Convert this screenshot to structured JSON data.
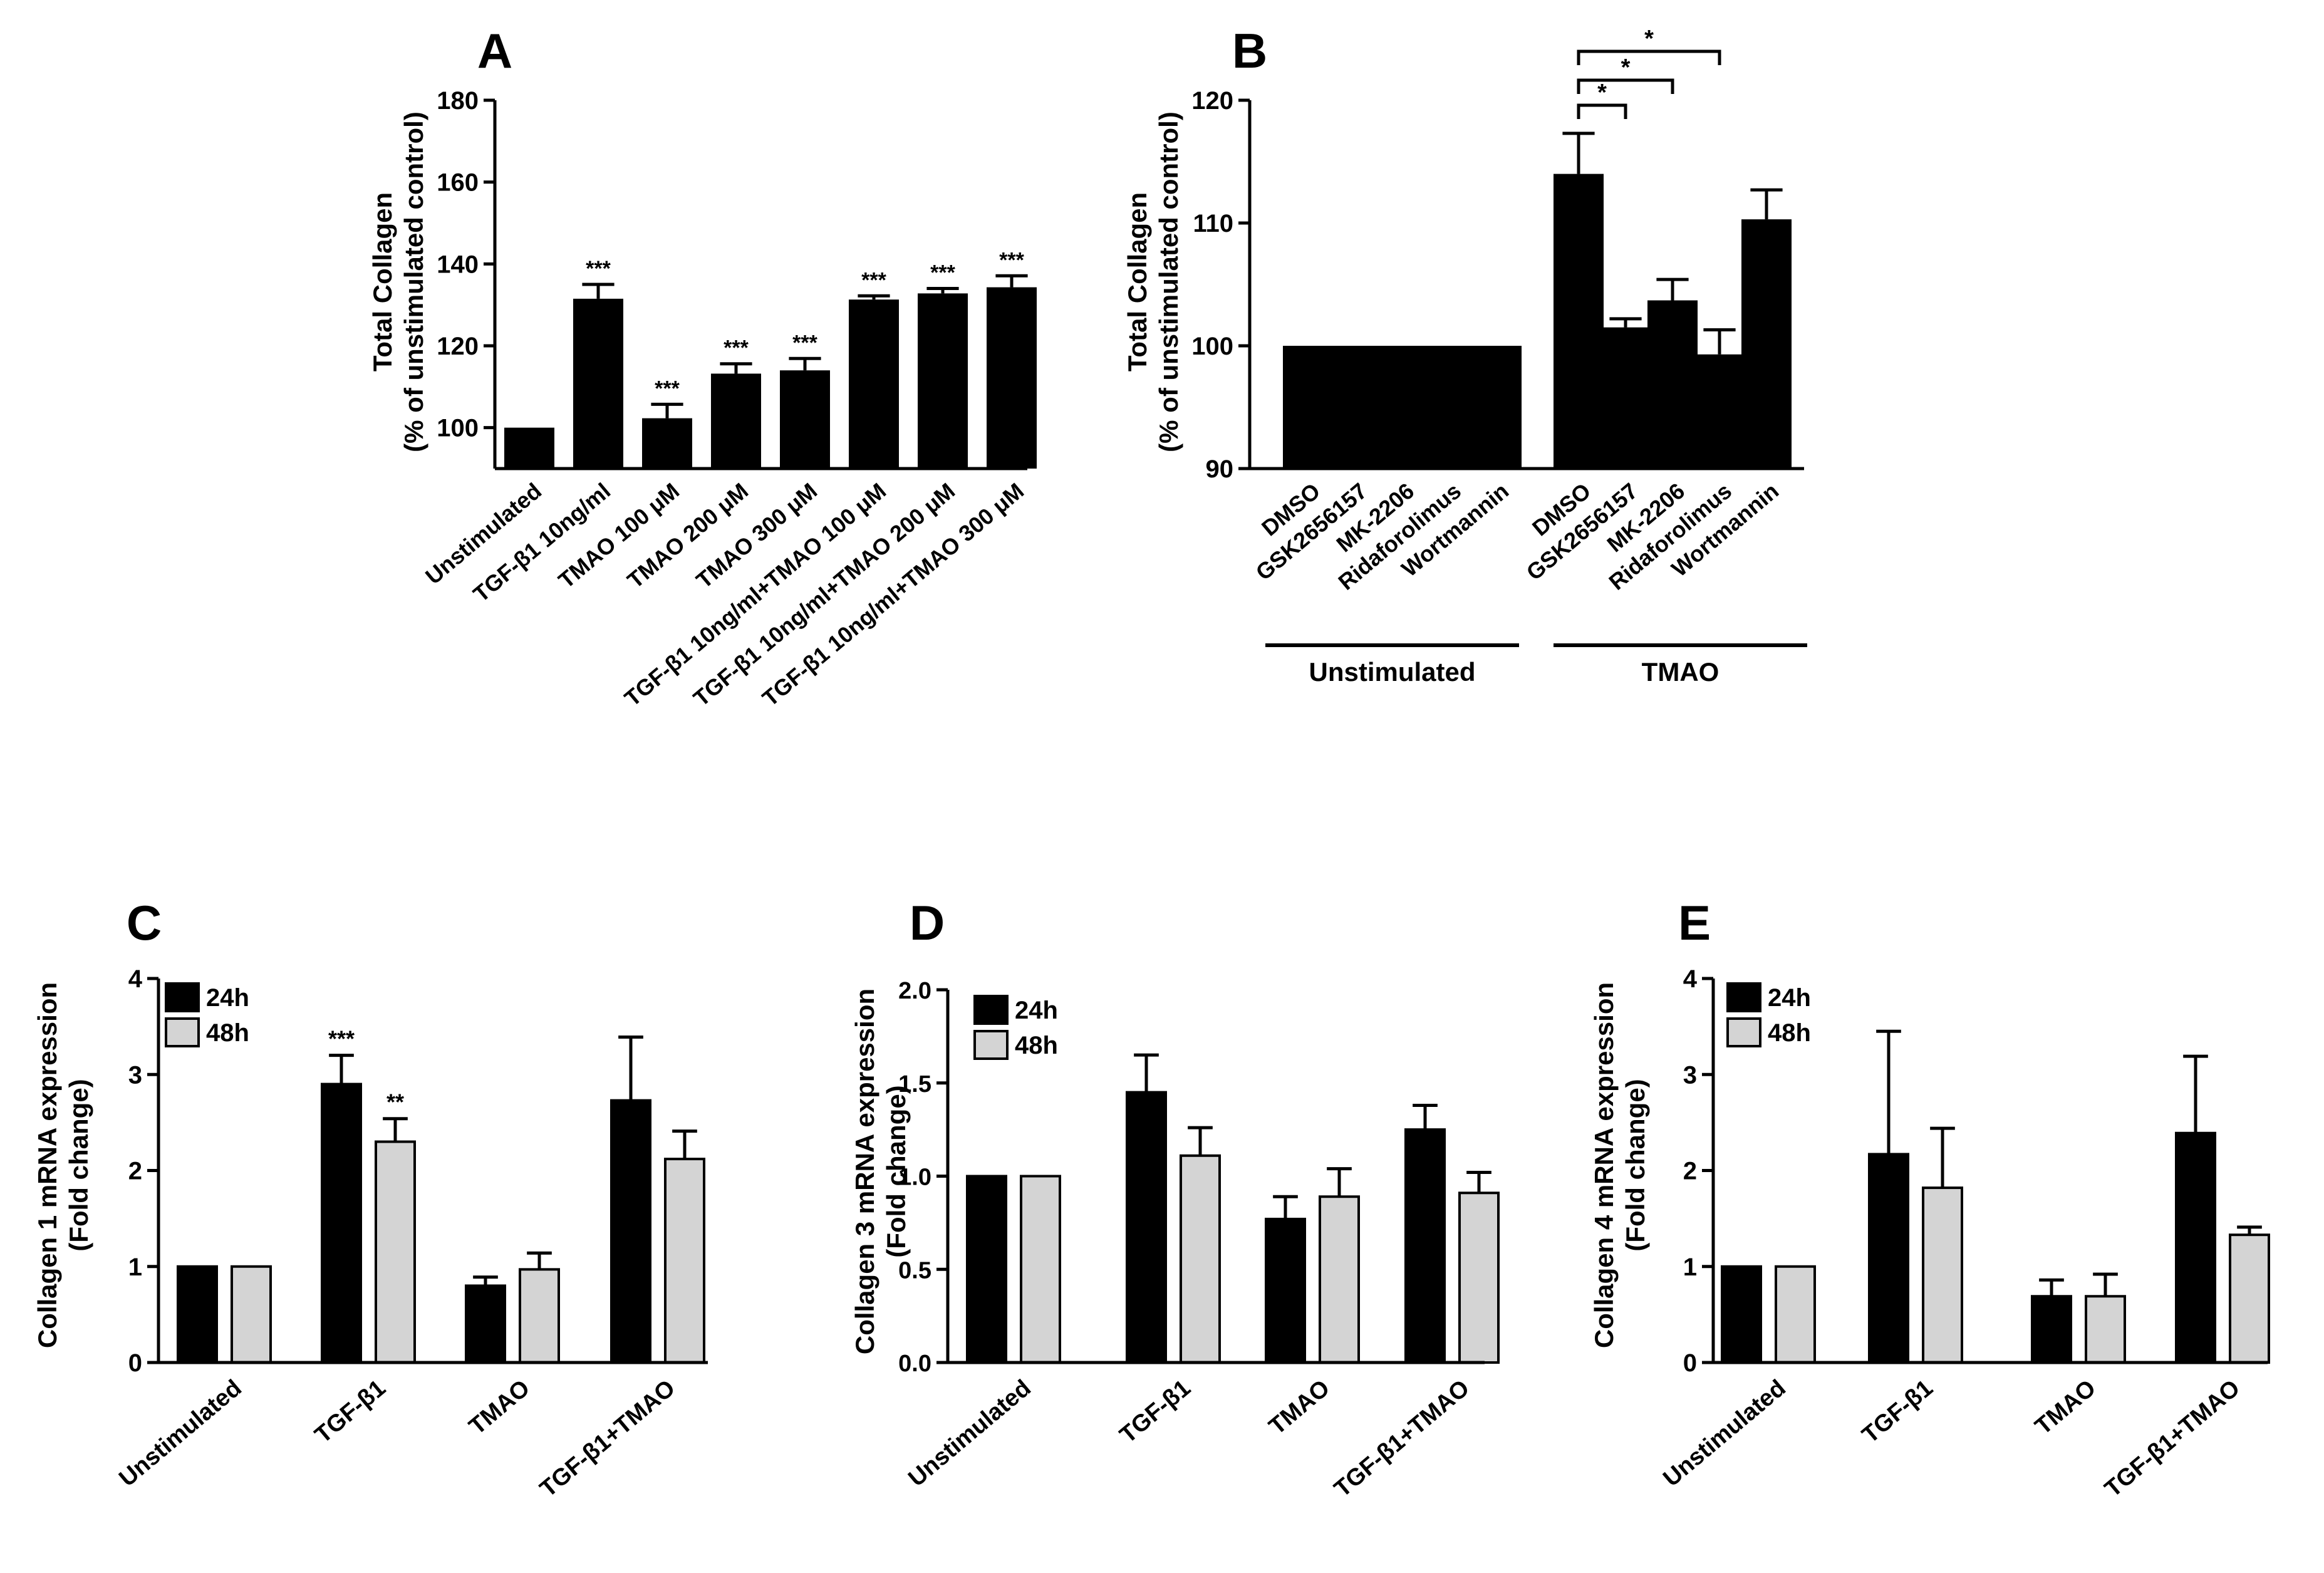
{
  "colors": {
    "dark": "#000000",
    "light": "#d4d4d4"
  },
  "chart_data": [
    {
      "id": "A",
      "type": "bar",
      "panel_label": "A",
      "ylabel_line1": "Total Collagen",
      "ylabel_line2": "(% of unstimulated control)",
      "ylim": [
        90,
        180
      ],
      "yticks": [
        "100",
        "120",
        "140",
        "160",
        "180"
      ],
      "categories": [
        "Unstimulated",
        "TGF-β1 10ng/ml",
        "TMAO 100 μM",
        "TMAO 200 μM",
        "TMAO 300 μM",
        "TGF-β1 10ng/ml+TMAO 100 μM",
        "TGF-β1 10ng/ml+TMAO 200 μM",
        "TGF-β1 10ng/ml+TMAO 300 μM"
      ],
      "values": [
        100,
        131.5,
        102.3,
        113.2,
        114.0,
        131.3,
        132.8,
        134.3
      ],
      "errors": [
        0,
        3.5,
        3.4,
        2.4,
        2.9,
        0.9,
        1.2,
        2.8
      ],
      "annotations": [
        "",
        "***",
        "***",
        "***",
        "***",
        "***",
        "***",
        "***"
      ]
    },
    {
      "id": "B",
      "type": "bar",
      "panel_label": "B",
      "ylabel_line1": "Total Collagen",
      "ylabel_line2": "(% of unstimulated control)",
      "ylim": [
        90,
        120
      ],
      "yticks": [
        "90",
        "100",
        "110",
        "120"
      ],
      "categories": [
        "DMSO",
        "GSK2656157",
        "MK-2206",
        "Ridaforolimus",
        "Wortmannin",
        "DMSO",
        "GSK2656157",
        "MK-2206",
        "Ridaforolimus",
        "Wortmannin"
      ],
      "values": [
        100,
        100,
        100,
        100,
        100,
        114.0,
        101.5,
        103.7,
        99.3,
        110.3
      ],
      "errors": [
        0,
        0,
        0,
        0,
        0,
        3.3,
        0.7,
        1.7,
        2.0,
        2.4
      ],
      "groups": [
        {
          "label": "Unstimulated"
        },
        {
          "label": "TMAO"
        }
      ],
      "significance": [
        {
          "from": 5,
          "to": 6,
          "label": "*"
        },
        {
          "from": 5,
          "to": 7,
          "label": "*"
        },
        {
          "from": 5,
          "to": 8,
          "label": "*"
        }
      ]
    },
    {
      "id": "C",
      "type": "bar",
      "panel_label": "C",
      "ylabel_line1": "Collagen 1 mRNA expression",
      "ylabel_line2": "(Fold change)",
      "ylim": [
        0,
        4
      ],
      "yticks": [
        "0",
        "1",
        "2",
        "3",
        "4"
      ],
      "categories": [
        "Unstimulated",
        "TGF-β1",
        "TMAO",
        "TGF-β1+TMAO"
      ],
      "series": [
        {
          "name": "24h",
          "values": [
            1.0,
            2.9,
            0.8,
            2.73
          ],
          "errors": [
            0,
            0.3,
            0.09,
            0.66
          ],
          "annotations": [
            "",
            "***",
            "",
            ""
          ]
        },
        {
          "name": "48h",
          "values": [
            1.0,
            2.3,
            0.97,
            2.12
          ],
          "errors": [
            0,
            0.24,
            0.17,
            0.29
          ],
          "annotations": [
            "",
            "**",
            "",
            ""
          ]
        }
      ]
    },
    {
      "id": "D",
      "type": "bar",
      "panel_label": "D",
      "ylabel_line1": "Collagen 3 mRNA expression",
      "ylabel_line2": "(Fold change)",
      "ylim": [
        0,
        2
      ],
      "yticks": [
        "0.0",
        "0.5",
        "1.0",
        "1.5",
        "2.0"
      ],
      "categories": [
        "Unstimulated",
        "TGF-β1",
        "TMAO",
        "TGF-β1+TMAO"
      ],
      "series": [
        {
          "name": "24h",
          "values": [
            1.0,
            1.45,
            0.77,
            1.25
          ],
          "errors": [
            0,
            0.2,
            0.12,
            0.13
          ]
        },
        {
          "name": "48h",
          "values": [
            1.0,
            1.11,
            0.89,
            0.91
          ],
          "errors": [
            0,
            0.15,
            0.15,
            0.11
          ]
        }
      ]
    },
    {
      "id": "E",
      "type": "bar",
      "panel_label": "E",
      "ylabel_line1": "Collagen 4 mRNA expression",
      "ylabel_line2": "(Fold change)",
      "ylim": [
        0,
        4
      ],
      "yticks": [
        "0",
        "1",
        "2",
        "3",
        "4"
      ],
      "categories": [
        "Unstimulated",
        "TGF-β1",
        "TMAO",
        "TGF-β1+TMAO"
      ],
      "series": [
        {
          "name": "24h",
          "values": [
            1.0,
            2.17,
            0.69,
            2.39
          ],
          "errors": [
            0,
            1.28,
            0.17,
            0.8
          ]
        },
        {
          "name": "48h",
          "values": [
            1.0,
            1.82,
            0.69,
            1.33
          ],
          "errors": [
            0,
            0.62,
            0.23,
            0.08
          ]
        }
      ]
    }
  ]
}
